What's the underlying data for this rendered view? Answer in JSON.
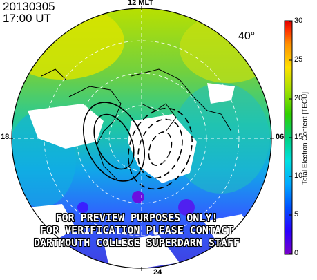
{
  "header": {
    "date": "20130305",
    "time": "17:00 UT"
  },
  "map": {
    "latitude_label": "40°",
    "mlt_labels": {
      "top": "12 MLT",
      "bottom": "24",
      "left": "18",
      "right": "06"
    }
  },
  "colorbar": {
    "title": "Total Electron Content [TECU]",
    "ticks": [
      "30",
      "25",
      "20",
      "15",
      "10",
      "5",
      "0"
    ],
    "range": [
      0,
      30
    ],
    "colormap": [
      "#7a00c8",
      "#2a00ff",
      "#0050ff",
      "#00a8ff",
      "#00e0e0",
      "#00d080",
      "#30d000",
      "#a0e000",
      "#ffe000",
      "#ff9000",
      "#ff3000",
      "#e00000"
    ]
  },
  "watermark": {
    "line1": "FOR PREVIEW PURPOSES ONLY!",
    "line2": "FOR VERIFICATION PLEASE CONTACT",
    "line3": "DARTMOUTH COLLEGE SUPERDARN STAFF"
  }
}
